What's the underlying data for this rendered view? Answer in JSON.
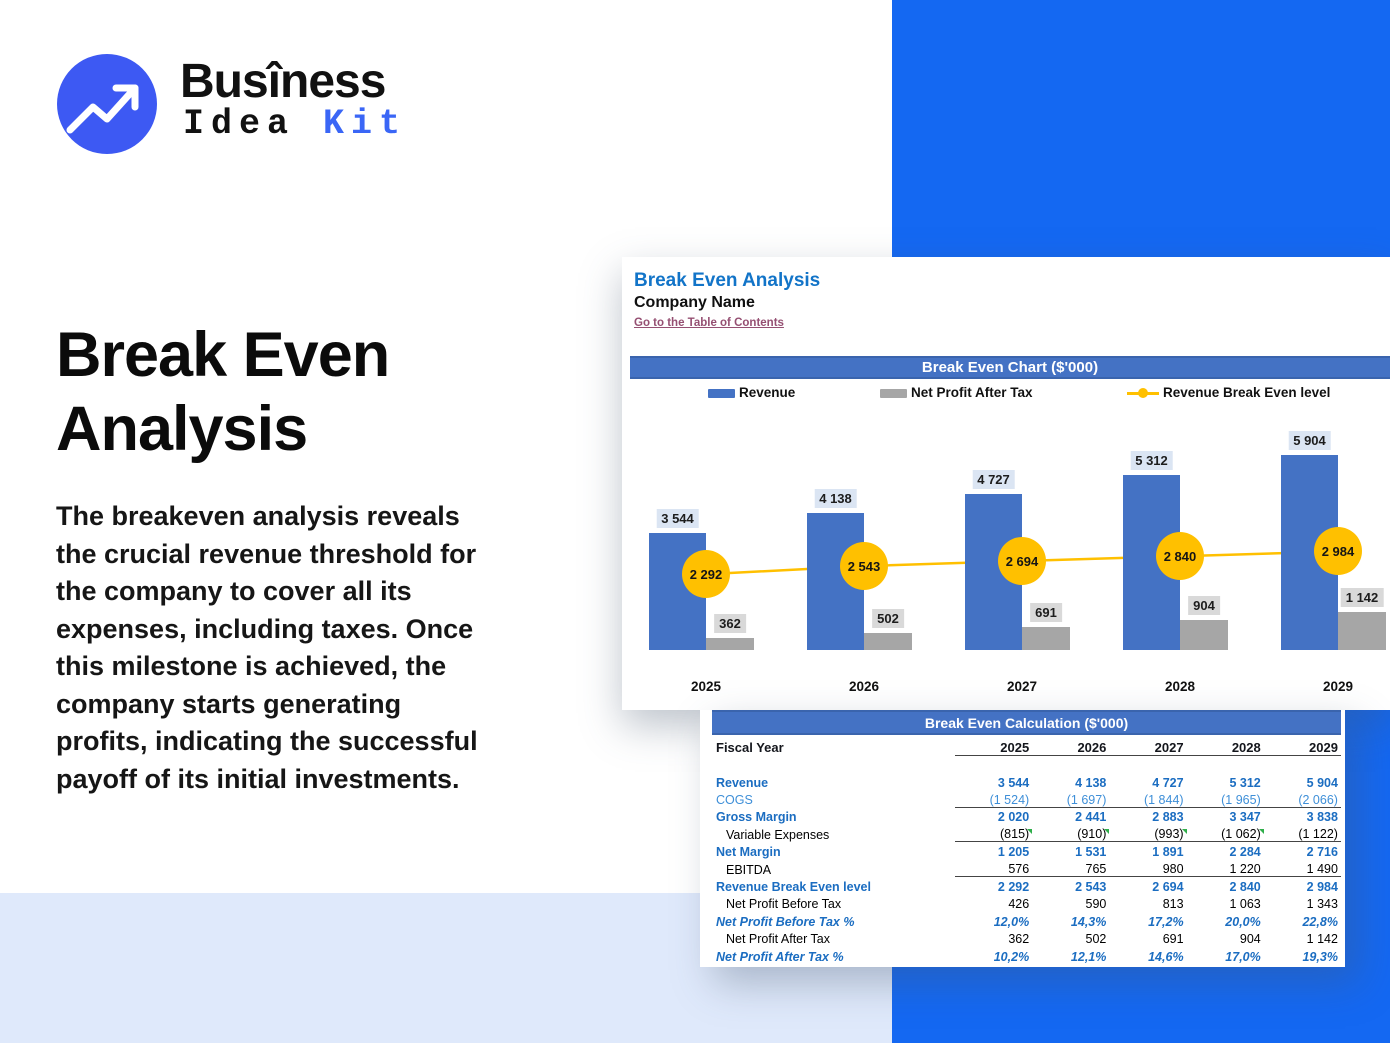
{
  "logo": {
    "word": "Busîness",
    "sub_black": "Idea ",
    "sub_blue": "Kit"
  },
  "hero": {
    "title": "Break Even\nAnalysis",
    "description": "The breakeven analysis reveals\nthe crucial revenue threshold for\nthe company to cover all its\nexpenses, including taxes. Once\nthis milestone is achieved, the\ncompany starts generating\nprofits, indicating the successful\npayoff of its initial investments."
  },
  "sheet": {
    "title": "Break Even Analysis",
    "company": "Company Name",
    "link": "Go to the Table of Contents"
  },
  "colors": {
    "brand_blue": "#1468F2",
    "revenue_bar": "#4472C4",
    "net_profit_bar": "#A6A6A6",
    "break_even_line": "#FFC000",
    "header_bar": "#4472C4",
    "link": "#954F72"
  },
  "chart_data": {
    "type": "bar",
    "title": "Break Even Chart ($'000)",
    "categories": [
      "2025",
      "2026",
      "2027",
      "2028",
      "2029"
    ],
    "series": [
      {
        "name": "Revenue",
        "type": "bar",
        "color": "#4472C4",
        "values": [
          3544,
          4138,
          4727,
          5312,
          5904
        ],
        "labels": [
          "3 544",
          "4 138",
          "4 727",
          "5 312",
          "5 904"
        ]
      },
      {
        "name": "Net Profit After Tax",
        "type": "bar",
        "color": "#A6A6A6",
        "values": [
          362,
          502,
          691,
          904,
          1142
        ],
        "labels": [
          "362",
          "502",
          "691",
          "904",
          "1 142"
        ]
      },
      {
        "name": "Revenue Break Even level",
        "type": "line",
        "color": "#FFC000",
        "values": [
          2292,
          2543,
          2694,
          2840,
          2984
        ],
        "labels": [
          "2 292",
          "2 543",
          "2 694",
          "2 840",
          "2 984"
        ]
      }
    ],
    "ylim": [
      0,
      5904
    ],
    "legend_position": "top",
    "grid": false
  },
  "table": {
    "title": "Break Even Calculation ($'000)",
    "fiscal_year_label": "Fiscal Year",
    "years": [
      "2025",
      "2026",
      "2027",
      "2028",
      "2029"
    ],
    "rows": [
      {
        "label": "Revenue",
        "style": "bold",
        "values": [
          "3 544",
          "4 138",
          "4 727",
          "5 312",
          "5 904"
        ]
      },
      {
        "label": "COGS",
        "style": "reg",
        "rule": true,
        "values": [
          "(1 524)",
          "(1 697)",
          "(1 844)",
          "(1 965)",
          "(2 066)"
        ]
      },
      {
        "label": "Gross Margin",
        "style": "bold",
        "values": [
          "2 020",
          "2 441",
          "2 883",
          "3 347",
          "3 838"
        ]
      },
      {
        "label": "Variable Expenses",
        "style": "ind",
        "rule": true,
        "flags": [
          1,
          1,
          1,
          1,
          0
        ],
        "values": [
          "(815)",
          "(910)",
          "(993)",
          "(1 062)",
          "(1 122)"
        ]
      },
      {
        "label": "Net Margin",
        "style": "bold",
        "values": [
          "1 205",
          "1 531",
          "1 891",
          "2 284",
          "2 716"
        ]
      },
      {
        "label": "EBITDA",
        "style": "ind",
        "rule": true,
        "values": [
          "576",
          "765",
          "980",
          "1 220",
          "1 490"
        ]
      },
      {
        "label": "Revenue Break Even level",
        "style": "bold",
        "values": [
          "2 292",
          "2 543",
          "2 694",
          "2 840",
          "2 984"
        ]
      },
      {
        "label": "Net Profit Before Tax",
        "style": "ind",
        "values": [
          "426",
          "590",
          "813",
          "1 063",
          "1 343"
        ]
      },
      {
        "label": "Net Profit Before Tax %",
        "style": "pct",
        "values": [
          "12,0%",
          "14,3%",
          "17,2%",
          "20,0%",
          "22,8%"
        ]
      },
      {
        "label": "Net Profit After Tax",
        "style": "ind",
        "values": [
          "362",
          "502",
          "691",
          "904",
          "1 142"
        ]
      },
      {
        "label": "Net Profit After Tax %",
        "style": "pct",
        "values": [
          "10,2%",
          "12,1%",
          "14,6%",
          "17,0%",
          "19,3%"
        ]
      }
    ]
  }
}
